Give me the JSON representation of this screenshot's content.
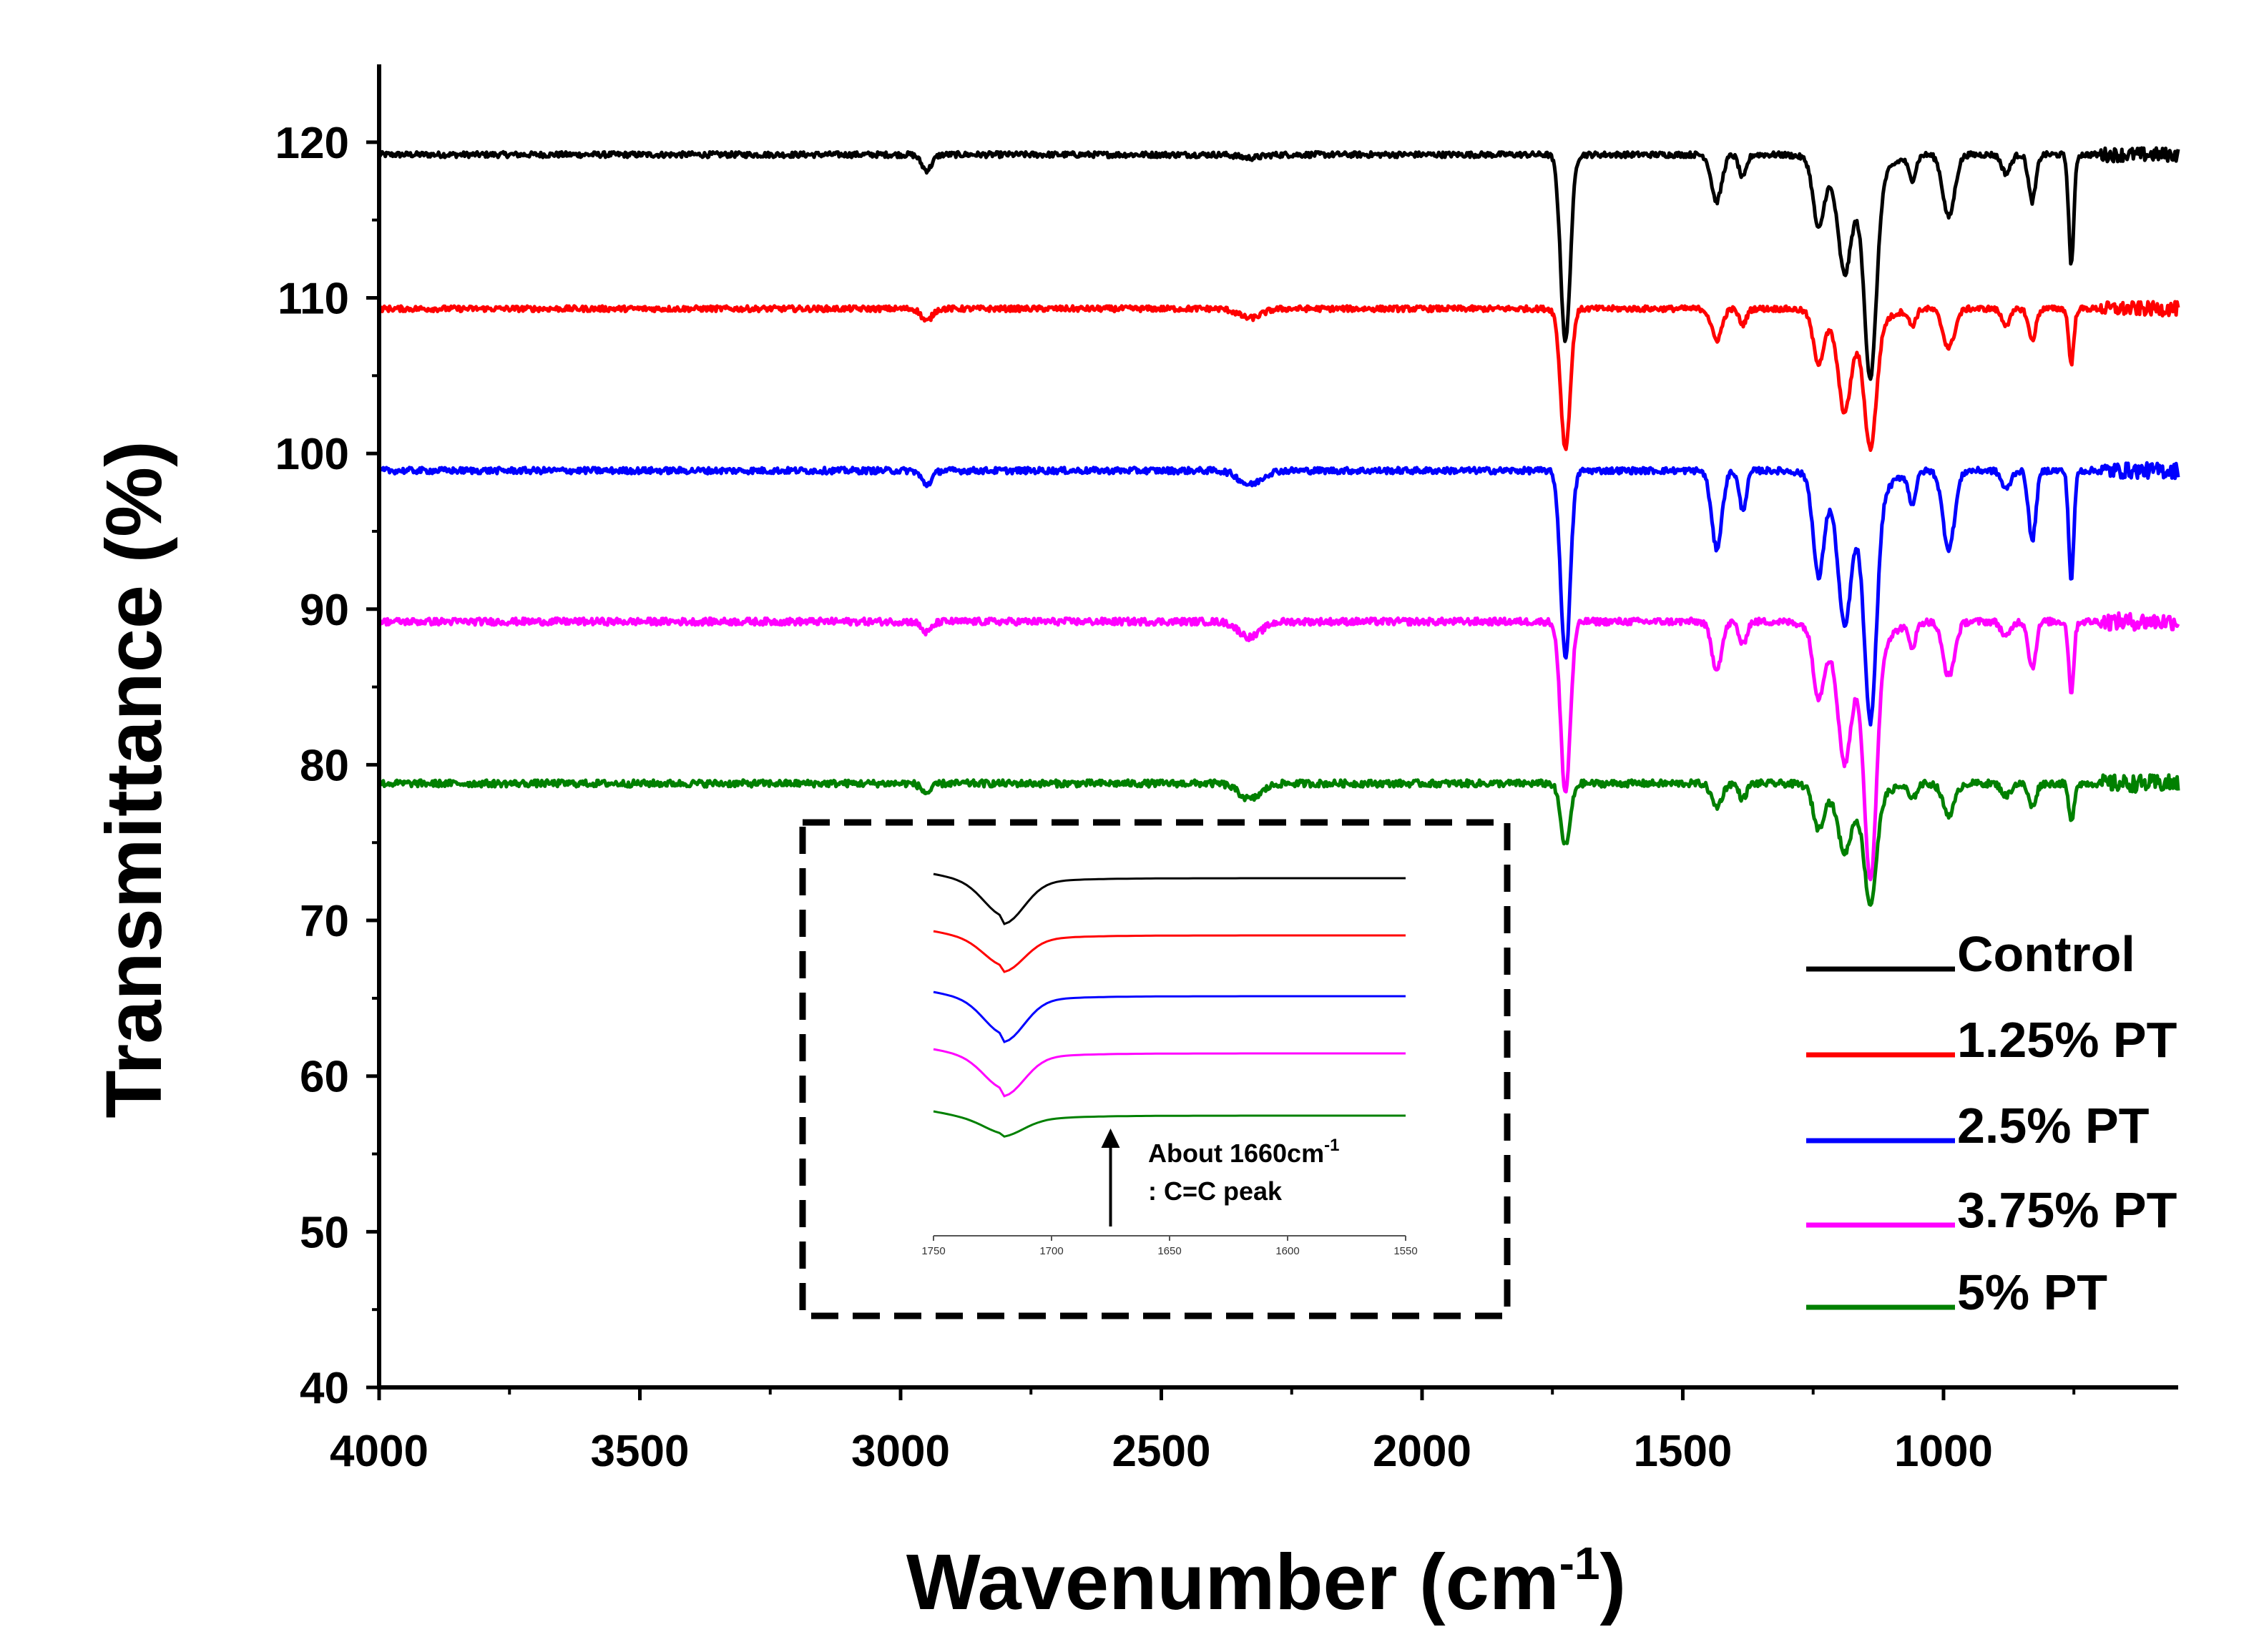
{
  "chart_data": {
    "type": "line",
    "title": "",
    "xlabel": "Wavenumber (cm",
    "xlabel_sup": "-1",
    "xlabel_close": ")",
    "ylabel": "Transmittance (%)",
    "xlim": [
      4000,
      550
    ],
    "ylim": [
      40,
      125
    ],
    "x_ticks": [
      4000,
      3500,
      3000,
      2500,
      2000,
      1500,
      1000
    ],
    "y_ticks": [
      40,
      50,
      60,
      70,
      80,
      90,
      100,
      110,
      120
    ],
    "grid": false,
    "legend_position": "right",
    "peak_x": [
      2950,
      2330,
      1725,
      1435,
      1385,
      1240,
      1190,
      1140,
      1060,
      990,
      880,
      830,
      755
    ],
    "series": [
      {
        "name": "Control",
        "color": "#000000",
        "baseline": 119.2,
        "noise": 0.18,
        "peak_depths": [
          1.0,
          0.2,
          12.0,
          3.0,
          1.5,
          4.0,
          5.0,
          12.0,
          1.5,
          4.0,
          1.2,
          3.0,
          7.0
        ]
      },
      {
        "name": "1.25% PT",
        "color": "#ff0000",
        "baseline": 109.3,
        "noise": 0.18,
        "peak_depths": [
          0.8,
          0.6,
          9.0,
          2.0,
          1.0,
          3.0,
          5.0,
          7.5,
          1.0,
          2.5,
          1.0,
          2.0,
          3.5
        ]
      },
      {
        "name": "2.5% PT",
        "color": "#0000ff",
        "baseline": 98.9,
        "noise": 0.2,
        "peak_depths": [
          0.9,
          0.9,
          12.0,
          5.0,
          2.5,
          6.0,
          7.0,
          13.5,
          2.0,
          5.0,
          1.2,
          4.5,
          7.0
        ]
      },
      {
        "name": "3.75% PT",
        "color": "#ff00ff",
        "baseline": 89.2,
        "noise": 0.22,
        "peak_depths": [
          0.7,
          1.0,
          11.0,
          3.0,
          1.5,
          4.0,
          6.0,
          14.0,
          1.5,
          3.5,
          1.0,
          3.0,
          4.5
        ]
      },
      {
        "name": "5% PT",
        "color": "#008000",
        "baseline": 78.8,
        "noise": 0.22,
        "peak_depths": [
          0.6,
          1.0,
          4.0,
          1.5,
          1.0,
          2.5,
          3.0,
          6.5,
          1.0,
          2.0,
          0.8,
          1.5,
          2.5
        ]
      }
    ],
    "inset": {
      "x_range": [
        1750,
        1550
      ],
      "x_ticks": [
        1750,
        1700,
        1650,
        1600,
        1550
      ],
      "annotation_x": 1675,
      "annotation_line1": "About 1660cm",
      "annotation_sup": "-1",
      "annotation_line2": ": C=C peak"
    }
  }
}
